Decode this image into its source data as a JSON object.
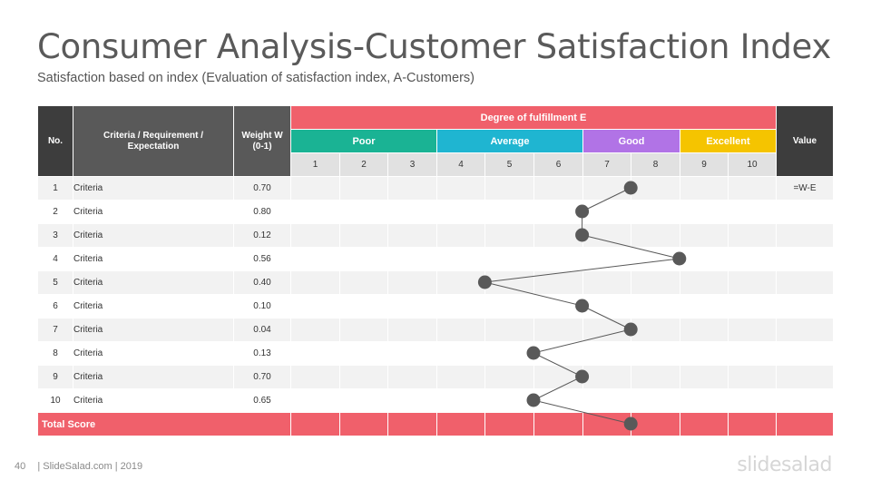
{
  "title": "Consumer Analysis-Customer Satisfaction Index",
  "subtitle": "Satisfaction based on index (Evaluation of satisfaction index, A-Customers)",
  "table": {
    "header": {
      "no": "No.",
      "criteria": "Criteria / Requirement / Expectation",
      "weight": "Weight W (0-1)",
      "degree": "Degree of fulfillment  E",
      "value": "Value"
    },
    "categories": [
      {
        "label": "Poor",
        "color": "#1ab394"
      },
      {
        "label": "Average",
        "color": "#1fb5d1"
      },
      {
        "label": "Good",
        "color": "#b173e6"
      },
      {
        "label": "Excellent",
        "color": "#f5c400"
      }
    ],
    "scale": [
      "1",
      "2",
      "3",
      "4",
      "5",
      "6",
      "7",
      "8",
      "9",
      "10"
    ],
    "rows": [
      {
        "no": "1",
        "criteria": "Criteria",
        "weight": "0.70",
        "value": "=W-E"
      },
      {
        "no": "2",
        "criteria": "Criteria",
        "weight": "0.80",
        "value": ""
      },
      {
        "no": "3",
        "criteria": "Criteria",
        "weight": "0.12",
        "value": ""
      },
      {
        "no": "4",
        "criteria": "Criteria",
        "weight": "0.56",
        "value": ""
      },
      {
        "no": "5",
        "criteria": "Criteria",
        "weight": "0.40",
        "value": ""
      },
      {
        "no": "6",
        "criteria": "Criteria",
        "weight": "0.10",
        "value": ""
      },
      {
        "no": "7",
        "criteria": "Criteria",
        "weight": "0.04",
        "value": ""
      },
      {
        "no": "8",
        "criteria": "Criteria",
        "weight": "0.13",
        "value": ""
      },
      {
        "no": "9",
        "criteria": "Criteria",
        "weight": "0.70",
        "value": ""
      },
      {
        "no": "10",
        "criteria": "Criteria",
        "weight": "0.65",
        "value": ""
      }
    ],
    "total_label": "Total Score",
    "fulfillment_points": [
      7.5,
      6.5,
      6.5,
      8.5,
      4.5,
      6.5,
      7.5,
      5.5,
      6.5,
      5.5,
      7.5
    ]
  },
  "accent_colors": {
    "header_dark": "#3d3d3d",
    "header_mid": "#595959",
    "degree": "#f0606b",
    "marker": "#595959"
  },
  "footer": {
    "page": "40",
    "text": "| SlideSalad.com | 2019"
  },
  "logo": "slidesalad"
}
